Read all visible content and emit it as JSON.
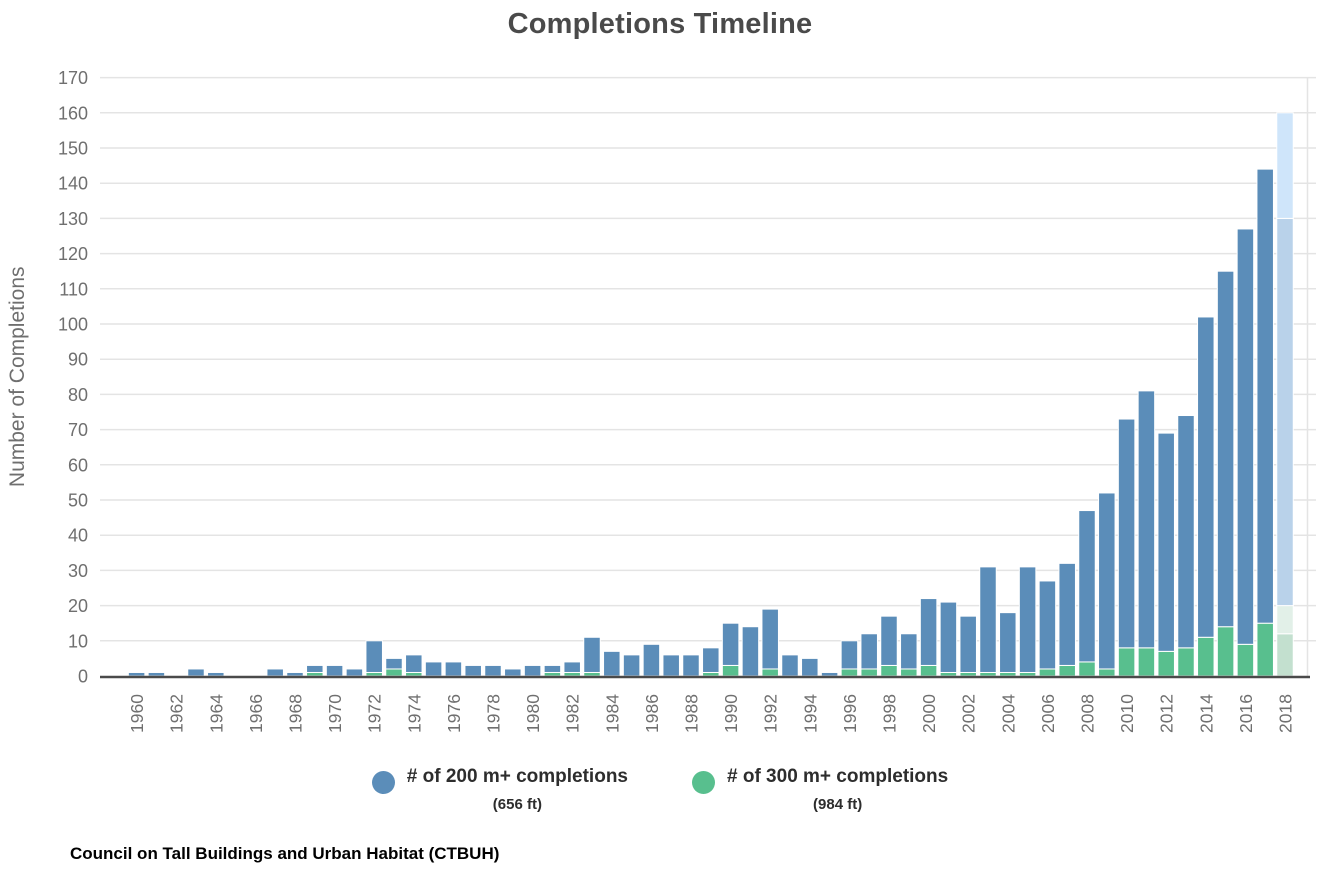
{
  "title": "Completions Timeline",
  "caption": "Council on Tall Buildings and Urban Habitat (CTBUH)",
  "y_axis": {
    "label": "Number of Completions",
    "tick_labels": [
      "0",
      "10",
      "20",
      "30",
      "40",
      "50",
      "60",
      "70",
      "80",
      "90",
      "100",
      "110",
      "120",
      "130",
      "140",
      "150",
      "160",
      "170"
    ],
    "min": 0,
    "max": 170,
    "step": 10
  },
  "x_axis": {
    "tick_labels": [
      "1960",
      "1962",
      "1964",
      "1966",
      "1968",
      "1970",
      "1972",
      "1974",
      "1976",
      "1978",
      "1980",
      "1982",
      "1984",
      "1986",
      "1988",
      "1990",
      "1992",
      "1994",
      "1996",
      "1998",
      "2000",
      "2002",
      "2004",
      "2006",
      "2008",
      "2010",
      "2012",
      "2014",
      "2016",
      "2018"
    ]
  },
  "legend": {
    "items": [
      {
        "label": "# of 200 m+ completions",
        "sublabel": "(656 ft)",
        "color": "#5b8db9",
        "marker": "circle"
      },
      {
        "label": "# of 300 m+ completions",
        "sublabel": "(984 ft)",
        "color": "#58bf8e",
        "marker": "circle"
      }
    ]
  },
  "colors": {
    "bar_200m": "#5b8db9",
    "bar_300m": "#58bf8e",
    "projection_200m_min": "#b9d2ea",
    "projection_200m_max": "#cfe5fa",
    "projection_300m_min": "#c3e0cf",
    "projection_300m_max": "#e2f0e8",
    "gridline": "#e4e4e4",
    "axis_line": "#4a4a4a",
    "axis_text": "#6f6f6f",
    "title_text": "#4a4a4a"
  },
  "chart_data": {
    "type": "bar",
    "stacked": true,
    "title": "Completions Timeline",
    "xlabel": "",
    "ylabel": "Number of Completions",
    "ylim": [
      0,
      170
    ],
    "grid": true,
    "legend_position": "bottom",
    "note": "300 m+ series is a subset of the 200 m+ totals, drawn as the lower (green) segment of each bar; 2018 shown as lighter projected range bar",
    "years": [
      1960,
      1961,
      1962,
      1963,
      1964,
      1965,
      1966,
      1967,
      1968,
      1969,
      1970,
      1971,
      1972,
      1973,
      1974,
      1975,
      1976,
      1977,
      1978,
      1979,
      1980,
      1981,
      1982,
      1983,
      1984,
      1985,
      1986,
      1987,
      1988,
      1989,
      1990,
      1991,
      1992,
      1993,
      1994,
      1995,
      1996,
      1997,
      1998,
      1999,
      2000,
      2001,
      2002,
      2003,
      2004,
      2005,
      2006,
      2007,
      2008,
      2009,
      2010,
      2011,
      2012,
      2013,
      2014,
      2015,
      2016,
      2017
    ],
    "series": [
      {
        "name": "# of 200 m+ completions (656 ft)",
        "color": "#5b8db9",
        "values": [
          1,
          1,
          0,
          2,
          1,
          0,
          0,
          2,
          1,
          3,
          3,
          2,
          10,
          5,
          6,
          4,
          4,
          3,
          3,
          2,
          3,
          3,
          4,
          11,
          7,
          6,
          9,
          6,
          6,
          8,
          15,
          14,
          19,
          6,
          5,
          1,
          10,
          12,
          17,
          12,
          22,
          21,
          17,
          31,
          18,
          31,
          27,
          32,
          47,
          52,
          73,
          81,
          69,
          74,
          102,
          115,
          127,
          144
        ]
      },
      {
        "name": "# of 300 m+ completions (984 ft)",
        "color": "#58bf8e",
        "values": [
          0,
          0,
          0,
          0,
          0,
          0,
          0,
          0,
          0,
          1,
          0,
          0,
          1,
          2,
          1,
          0,
          0,
          0,
          0,
          0,
          0,
          1,
          1,
          1,
          0,
          0,
          0,
          0,
          0,
          1,
          3,
          0,
          2,
          0,
          0,
          0,
          2,
          2,
          3,
          2,
          3,
          1,
          1,
          1,
          1,
          1,
          2,
          3,
          4,
          2,
          8,
          8,
          7,
          8,
          11,
          14,
          9,
          15
        ]
      }
    ],
    "projection_2018": {
      "year": 2018,
      "completions_200m_range": [
        130,
        160
      ],
      "completions_300m_range": [
        12,
        20
      ]
    }
  }
}
